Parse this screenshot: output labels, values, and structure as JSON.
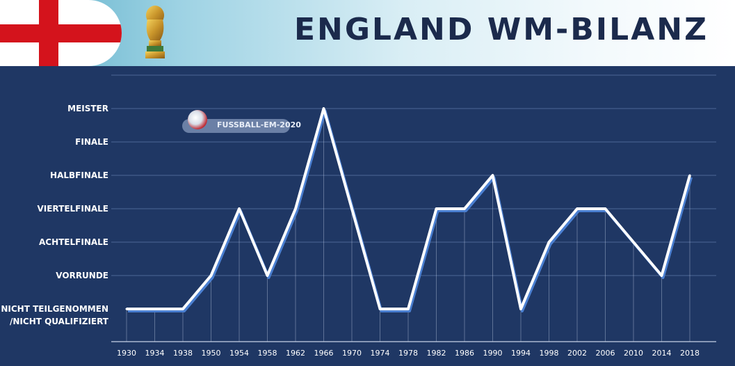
{
  "header": {
    "title": "ENGLAND WM-BILANZ",
    "flag_icon": "england-flag-icon",
    "trophy_icon": "world-cup-trophy-icon"
  },
  "watermark": {
    "text": "FUSSBALL-EM-2020",
    "icon": "football-logo-icon"
  },
  "colors": {
    "background": "#1f3764",
    "line": "#ffffff",
    "line_shadow": "#4a7fd1",
    "flag_red": "#d4131c"
  },
  "chart_data": {
    "type": "line",
    "title": "ENGLAND WM-BILANZ",
    "xlabel": "",
    "ylabel": "",
    "grid": true,
    "legend": "none",
    "x": [
      "1930",
      "1934",
      "1938",
      "1950",
      "1954",
      "1958",
      "1962",
      "1966",
      "1970",
      "1974",
      "1978",
      "1982",
      "1986",
      "1990",
      "1994",
      "1998",
      "2002",
      "2006",
      "2010",
      "2014",
      "2018"
    ],
    "y_categories": [
      "NICHT TEILGENOMMEN\n/NICHT QUALIFIZIERT",
      "VORRUNDE",
      "ACHTELFINALE",
      "VIERTELFINALE",
      "HALBFINALE",
      "FINALE",
      "MEISTER"
    ],
    "ylim": [
      0,
      6
    ],
    "series": [
      {
        "values": [
          0,
          0,
          0,
          1,
          3,
          1,
          3,
          6,
          3,
          0,
          0,
          3,
          3,
          4,
          0,
          2,
          3,
          3,
          2,
          1,
          4
        ]
      }
    ]
  }
}
